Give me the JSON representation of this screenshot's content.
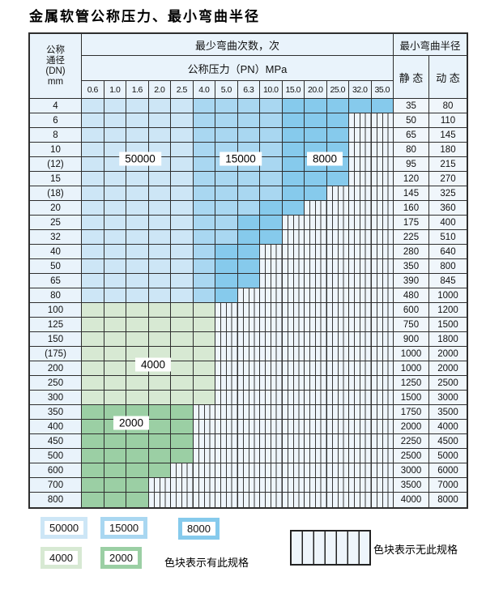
{
  "title": "金属软管公称压力、最小弯曲半径",
  "colors": {
    "z50000": "#cde6f6",
    "z15000": "#a9d7f1",
    "z8000": "#86caec",
    "z4000": "#d7e9d3",
    "z2000": "#9bcfa4",
    "header_bg": "#e9f3fb",
    "stripe_bg": "#eef5fb",
    "stripe_line": "#3a3a3a",
    "grid": "#2e2e2e"
  },
  "table": {
    "corner": {
      "lines": [
        "公称",
        "通径",
        "(DN)",
        "mm"
      ]
    },
    "bend_header": "最少弯曲次数，次",
    "pressure_header": "公称压力（PN）MPa",
    "radius_header": "最小弯曲半径",
    "static_header": "静 态",
    "dynamic_header": "动 态",
    "pn_columns": [
      "0.6",
      "1.0",
      "1.6",
      "2.0",
      "2.5",
      "4.0",
      "5.0",
      "6.3",
      "10.0",
      "15.0",
      "20.0",
      "25.0",
      "32.0",
      "35.0"
    ],
    "zone_codes": {
      "A": "50000",
      "B": "15000",
      "C": "8000",
      "D": "4000",
      "E": "2000",
      "X": "none"
    },
    "rows": [
      {
        "dn": "4",
        "cells": "AAAAABBBBCCCCC",
        "static": "35",
        "dynamic": "80"
      },
      {
        "dn": "6",
        "cells": "AAAAABBBBCCCXX",
        "static": "50",
        "dynamic": "110"
      },
      {
        "dn": "8",
        "cells": "AAAAABBBBCCCXX",
        "static": "65",
        "dynamic": "145"
      },
      {
        "dn": "10",
        "cells": "AAAAABBBBCCCXX",
        "static": "80",
        "dynamic": "180"
      },
      {
        "dn": "(12)",
        "cells": "AAAAABBBBCCCXX",
        "static": "95",
        "dynamic": "215"
      },
      {
        "dn": "15",
        "cells": "AAAAABBBBCCCXX",
        "static": "120",
        "dynamic": "270"
      },
      {
        "dn": "(18)",
        "cells": "AAAAABBBBCCXXX",
        "static": "145",
        "dynamic": "325"
      },
      {
        "dn": "20",
        "cells": "AAAAABBBCCXXXX",
        "static": "160",
        "dynamic": "360"
      },
      {
        "dn": "25",
        "cells": "AAAAABBCCXXXXX",
        "static": "175",
        "dynamic": "400"
      },
      {
        "dn": "32",
        "cells": "AAAAABBCCXXXXX",
        "static": "225",
        "dynamic": "510"
      },
      {
        "dn": "40",
        "cells": "AAAAABCCXXXXXX",
        "static": "280",
        "dynamic": "640"
      },
      {
        "dn": "50",
        "cells": "AAAAABCCXXXXXX",
        "static": "350",
        "dynamic": "800"
      },
      {
        "dn": "65",
        "cells": "AAAAABCCXXXXXX",
        "static": "390",
        "dynamic": "845"
      },
      {
        "dn": "80",
        "cells": "AAAAABCXXXXXXX",
        "static": "480",
        "dynamic": "1000"
      },
      {
        "dn": "100",
        "cells": "DDDDDDXXXXXXXX",
        "static": "600",
        "dynamic": "1200"
      },
      {
        "dn": "125",
        "cells": "DDDDDDXXXXXXXX",
        "static": "750",
        "dynamic": "1500"
      },
      {
        "dn": "150",
        "cells": "DDDDDDXXXXXXXX",
        "static": "900",
        "dynamic": "1800"
      },
      {
        "dn": "(175)",
        "cells": "DDDDDDXXXXXXXX",
        "static": "1000",
        "dynamic": "2000"
      },
      {
        "dn": "200",
        "cells": "DDDDDDXXXXXXXX",
        "static": "1000",
        "dynamic": "2000"
      },
      {
        "dn": "250",
        "cells": "DDDDDDXXXXXXXX",
        "static": "1250",
        "dynamic": "2500"
      },
      {
        "dn": "300",
        "cells": "DDDDDDXXXXXXXX",
        "static": "1500",
        "dynamic": "3000"
      },
      {
        "dn": "350",
        "cells": "EEEEEXXXXXXXXX",
        "static": "1750",
        "dynamic": "3500"
      },
      {
        "dn": "400",
        "cells": "EEEEEXXXXXXXXX",
        "static": "2000",
        "dynamic": "4000"
      },
      {
        "dn": "450",
        "cells": "EEEEEXXXXXXXXX",
        "static": "2250",
        "dynamic": "4500"
      },
      {
        "dn": "500",
        "cells": "EEEEEXXXXXXXXX",
        "static": "2500",
        "dynamic": "5000"
      },
      {
        "dn": "600",
        "cells": "EEEEXXXXXXXXXX",
        "static": "3000",
        "dynamic": "6000"
      },
      {
        "dn": "700",
        "cells": "EEEXXXXXXXXXXX",
        "static": "3500",
        "dynamic": "7000"
      },
      {
        "dn": "800",
        "cells": "EEEXXXXXXXXXXX",
        "static": "4000",
        "dynamic": "8000"
      }
    ]
  },
  "zone_labels": {
    "l50000": "50000",
    "l15000": "15000",
    "l8000": "8000",
    "l4000": "4000",
    "l2000": "2000"
  },
  "legend": {
    "chips": [
      {
        "label": "50000",
        "zone": "z50000"
      },
      {
        "label": "15000",
        "zone": "z15000"
      },
      {
        "label": "8000",
        "zone": "z8000"
      },
      {
        "label": "4000",
        "zone": "z4000"
      },
      {
        "label": "2000",
        "zone": "z2000"
      }
    ],
    "has_spec_text": "色块表示有此规格",
    "no_spec_text": "色块表示无此规格"
  }
}
